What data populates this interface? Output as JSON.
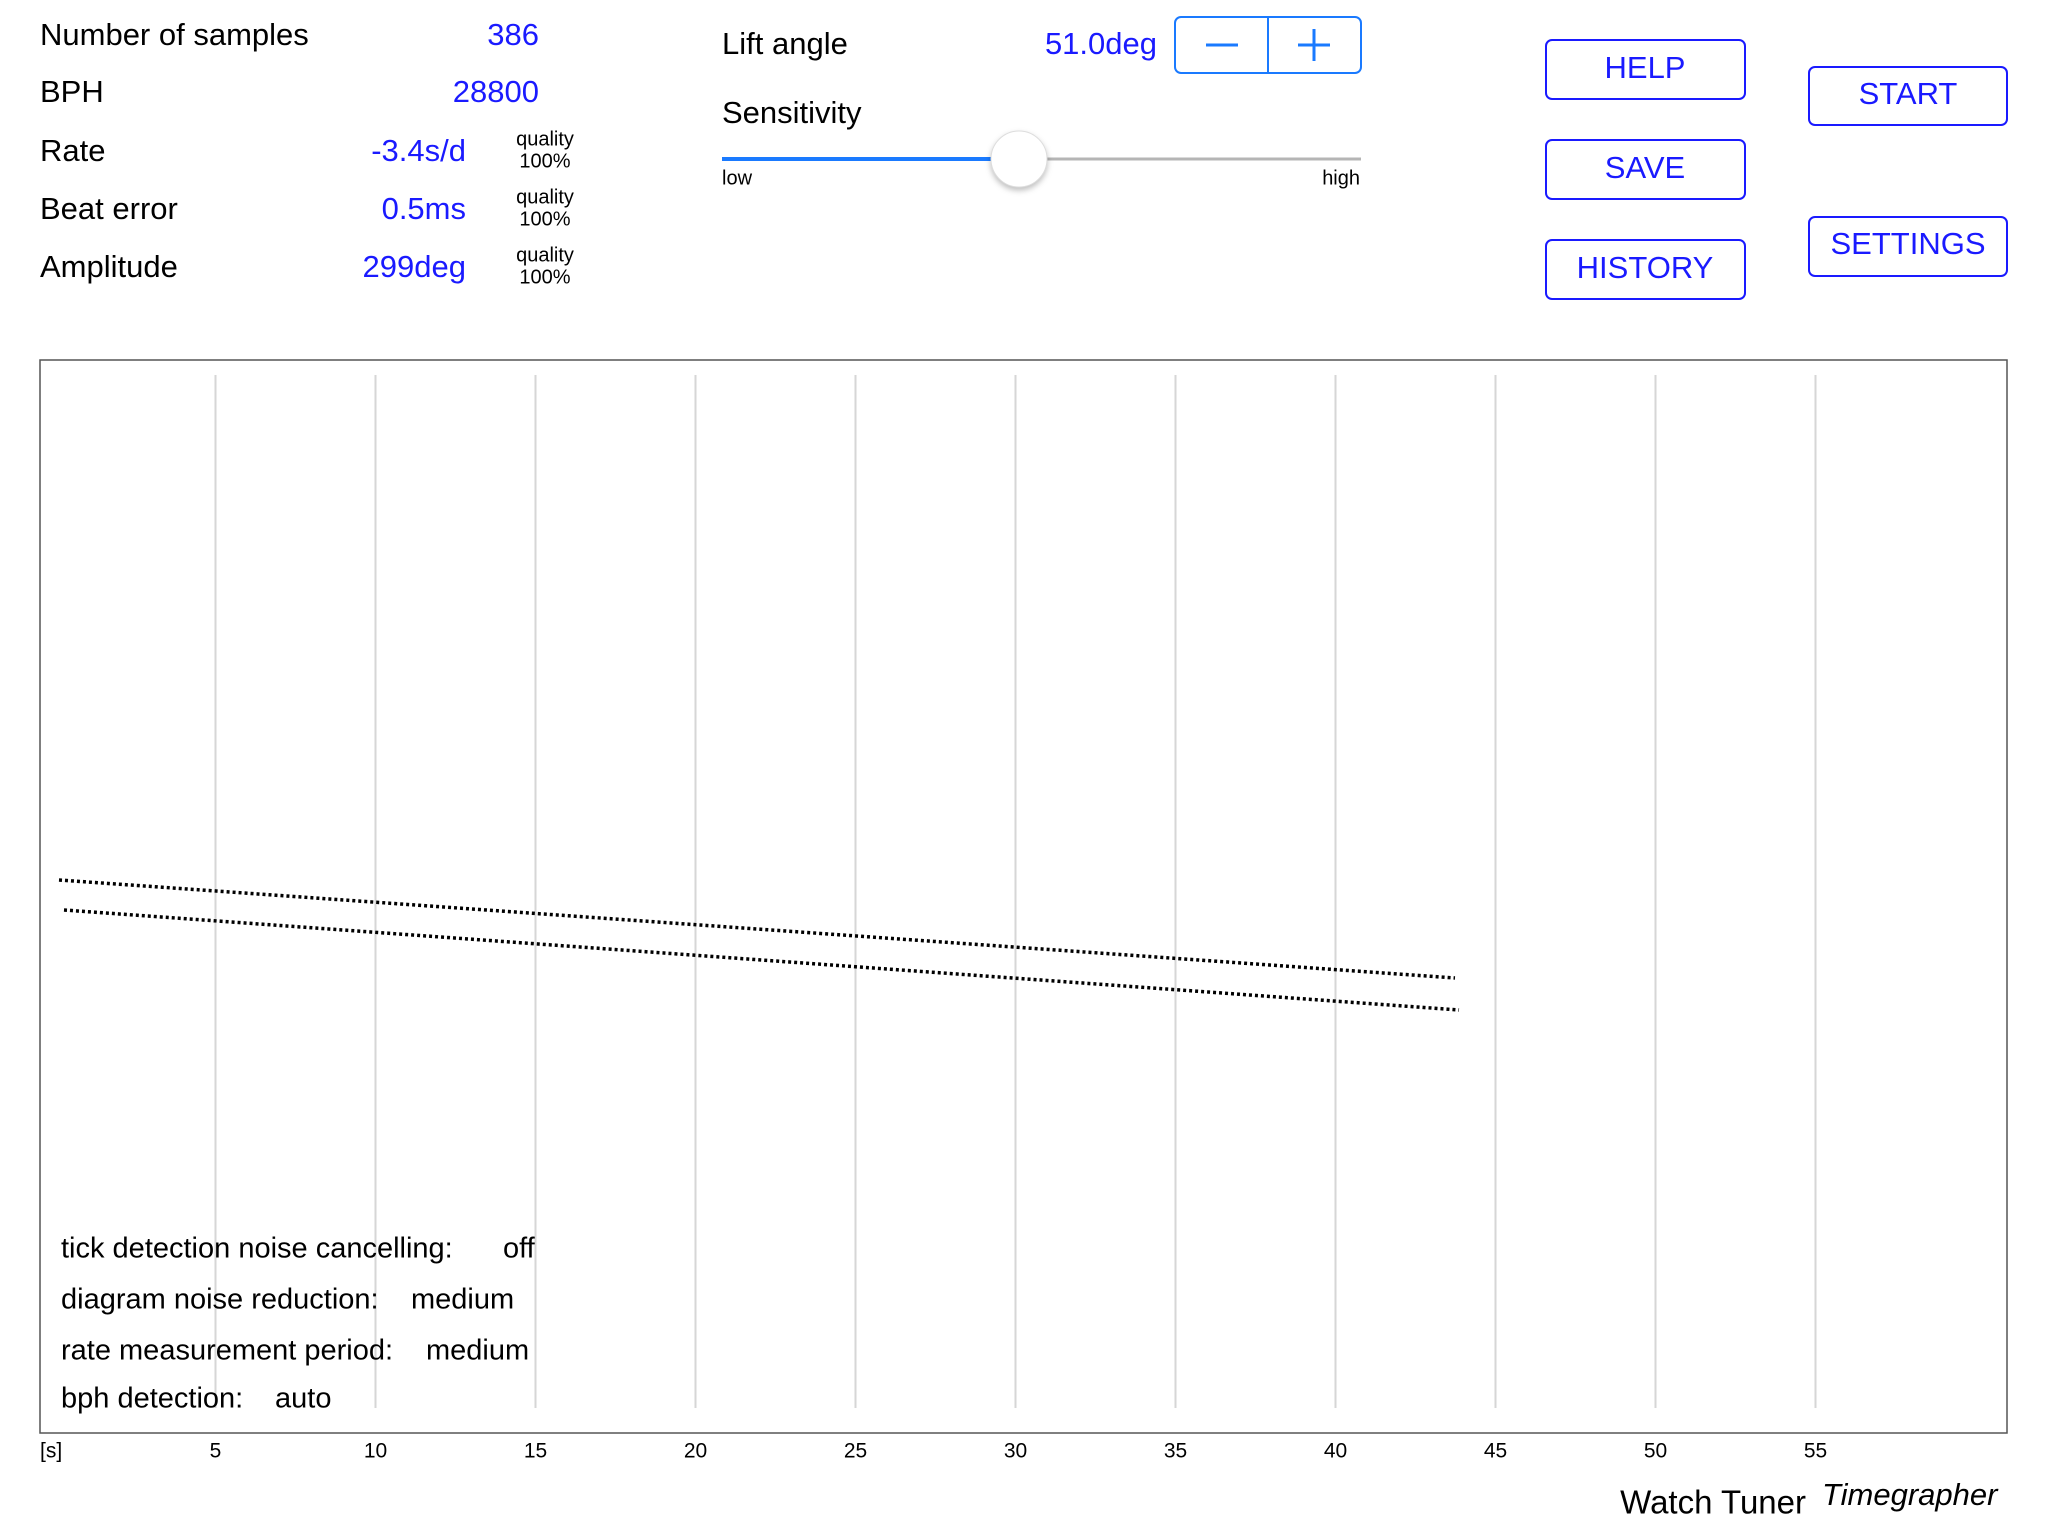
{
  "stats": [
    {
      "label": "Number of samples",
      "value": "386"
    },
    {
      "label": "BPH",
      "value": "28800"
    },
    {
      "label": "Rate",
      "value": "-3.4s/d",
      "quality_label": "quality",
      "quality": "100%"
    },
    {
      "label": "Beat error",
      "value": "0.5ms",
      "quality_label": "quality",
      "quality": "100%"
    },
    {
      "label": "Amplitude",
      "value": "299deg",
      "quality_label": "quality",
      "quality": "100%"
    }
  ],
  "lift_angle": {
    "label": "Lift angle",
    "value": "51.0deg"
  },
  "sensitivity": {
    "label": "Sensitivity",
    "low": "low",
    "high": "high"
  },
  "buttons": {
    "help": "HELP",
    "save": "SAVE",
    "history": "HISTORY",
    "start": "START",
    "settings": "SETTINGS"
  },
  "notes": [
    {
      "label": "tick detection noise cancelling:",
      "value": "off"
    },
    {
      "label": "diagram noise reduction:",
      "value": "medium"
    },
    {
      "label": "rate measurement period:",
      "value": "medium"
    },
    {
      "label": "bph detection:",
      "value": "auto"
    }
  ],
  "chart_data": {
    "type": "timegraph",
    "xlabel": "[s]",
    "xlim": [
      0,
      60
    ],
    "xticks": [
      5,
      10,
      15,
      20,
      25,
      30,
      35,
      40,
      45,
      50,
      55
    ],
    "grid": true
  },
  "footer": {
    "app": "Watch Tuner",
    "subtitle": "Timegrapher"
  }
}
